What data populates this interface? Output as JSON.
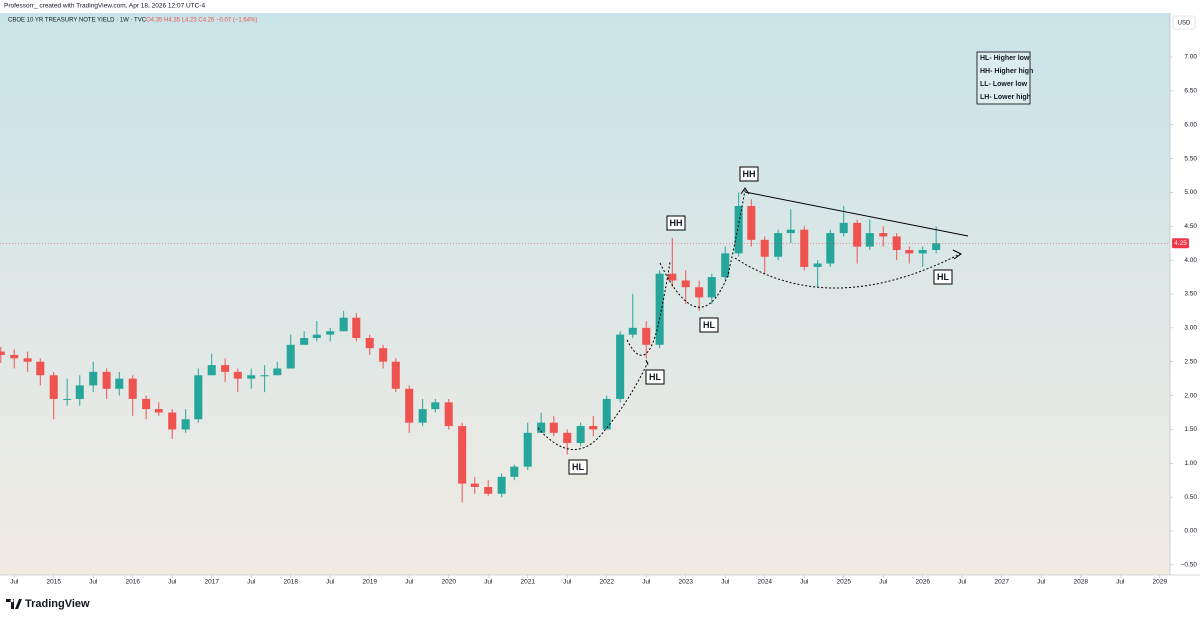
{
  "header": {
    "credit": "Professorr_ created with TradingView.com, Apr 18, 2026 12:07 UTC-4",
    "symbol": "CBOE 10 YR TREASURY NOTE YIELD · 1W · TVC",
    "ohlc": "O4.35 H4.35 L4.23 C4.25 −0.07 (−1.64%)",
    "currency": "USD"
  },
  "footer": {
    "brand": "TradingView"
  },
  "chart_data": {
    "type": "candlestick",
    "x": [
      2014.33,
      2014.5,
      2014.67,
      2014.83,
      2015,
      2015.17,
      2015.33,
      2015.5,
      2015.67,
      2015.83,
      2016,
      2016.17,
      2016.33,
      2016.5,
      2016.67,
      2016.83,
      2017,
      2017.17,
      2017.33,
      2017.5,
      2017.67,
      2017.83,
      2018,
      2018.17,
      2018.33,
      2018.5,
      2018.67,
      2018.83,
      2019,
      2019.17,
      2019.33,
      2019.5,
      2019.67,
      2019.83,
      2020,
      2020.17,
      2020.33,
      2020.5,
      2020.67,
      2020.83,
      2021,
      2021.17,
      2021.33,
      2021.5,
      2021.67,
      2021.83,
      2022,
      2022.17,
      2022.33,
      2022.5,
      2022.67,
      2022.83,
      2023,
      2023.17,
      2023.33,
      2023.5,
      2023.67,
      2023.83,
      2024,
      2024.17,
      2024.33,
      2024.5,
      2024.67,
      2024.83,
      2025,
      2025.17,
      2025.33,
      2025.5,
      2025.67,
      2025.83,
      2026,
      2026.17
    ],
    "open": [
      2.65,
      2.6,
      2.55,
      2.5,
      2.3,
      1.95,
      1.95,
      2.15,
      2.35,
      2.1,
      2.25,
      1.95,
      1.8,
      1.75,
      1.5,
      1.65,
      2.3,
      2.45,
      2.35,
      2.25,
      2.3,
      2.3,
      2.4,
      2.75,
      2.85,
      2.9,
      2.95,
      3.15,
      2.85,
      2.7,
      2.5,
      2.1,
      1.6,
      1.8,
      1.9,
      1.55,
      0.7,
      0.65,
      0.55,
      0.8,
      0.95,
      1.45,
      1.6,
      1.45,
      1.3,
      1.55,
      1.5,
      1.95,
      2.9,
      3.0,
      2.75,
      3.8,
      3.7,
      3.6,
      3.45,
      3.75,
      4.1,
      4.8,
      4.3,
      4.05,
      4.4,
      4.45,
      3.9,
      3.95,
      4.4,
      4.55,
      4.2,
      4.4,
      4.35,
      4.15,
      4.1,
      4.15
    ],
    "high": [
      2.72,
      2.68,
      2.65,
      2.55,
      2.35,
      2.25,
      2.3,
      2.5,
      2.4,
      2.35,
      2.3,
      2.0,
      1.9,
      1.8,
      1.8,
      2.4,
      2.62,
      2.55,
      2.4,
      2.4,
      2.45,
      2.5,
      2.9,
      2.95,
      3.1,
      3.0,
      3.25,
      3.22,
      2.9,
      2.75,
      2.55,
      2.15,
      1.95,
      1.95,
      1.95,
      1.6,
      0.8,
      0.75,
      0.85,
      0.98,
      1.6,
      1.75,
      1.7,
      1.5,
      1.6,
      1.7,
      2.0,
      2.95,
      3.5,
      3.1,
      3.85,
      4.33,
      3.85,
      3.7,
      3.8,
      4.2,
      5.0,
      4.9,
      4.35,
      4.45,
      4.75,
      4.5,
      4.0,
      4.45,
      4.8,
      4.6,
      4.6,
      4.5,
      4.4,
      4.2,
      4.2,
      4.5
    ],
    "low": [
      2.48,
      2.4,
      2.35,
      2.15,
      1.65,
      1.85,
      1.85,
      2.05,
      1.95,
      2.0,
      1.7,
      1.65,
      1.7,
      1.36,
      1.45,
      1.6,
      2.3,
      2.2,
      2.05,
      2.1,
      2.05,
      2.3,
      2.4,
      2.75,
      2.8,
      2.8,
      2.95,
      2.8,
      2.6,
      2.4,
      2.05,
      1.45,
      1.55,
      1.75,
      1.5,
      0.42,
      0.55,
      0.52,
      0.5,
      0.75,
      0.9,
      1.45,
      1.4,
      1.13,
      1.25,
      1.4,
      1.5,
      1.9,
      2.85,
      2.55,
      2.7,
      3.6,
      3.35,
      3.25,
      3.35,
      3.7,
      4.05,
      4.2,
      3.8,
      4.0,
      4.25,
      3.85,
      3.6,
      3.9,
      4.35,
      3.95,
      4.15,
      4.2,
      4.0,
      3.95,
      3.9,
      4.1
    ],
    "close": [
      2.6,
      2.55,
      2.5,
      2.3,
      1.95,
      1.95,
      2.15,
      2.35,
      2.1,
      2.25,
      1.95,
      1.8,
      1.75,
      1.5,
      1.65,
      2.3,
      2.45,
      2.35,
      2.25,
      2.3,
      2.3,
      2.4,
      2.75,
      2.85,
      2.9,
      2.95,
      3.15,
      2.85,
      2.7,
      2.5,
      2.1,
      1.6,
      1.8,
      1.9,
      1.55,
      0.7,
      0.65,
      0.55,
      0.8,
      0.95,
      1.45,
      1.6,
      1.45,
      1.3,
      1.55,
      1.5,
      1.95,
      2.9,
      3.0,
      2.75,
      3.8,
      3.7,
      3.6,
      3.45,
      3.75,
      4.1,
      4.8,
      4.3,
      4.05,
      4.4,
      4.45,
      3.9,
      3.95,
      4.4,
      4.55,
      4.2,
      4.4,
      4.35,
      4.15,
      4.1,
      4.15,
      4.25
    ],
    "up_color": "#26a69a",
    "down_color": "#ef5350",
    "last_price": 4.25,
    "last_price_color": "#f23645",
    "xlim": [
      2014.32,
      2029.13
    ],
    "xticks": [
      {
        "value": 2014.5,
        "label": "Jul"
      },
      2015,
      {
        "value": 2015.5,
        "label": "Jul"
      },
      2016,
      {
        "value": 2016.5,
        "label": "Jul"
      },
      2017,
      {
        "value": 2017.5,
        "label": "Jul"
      },
      2018,
      {
        "value": 2018.5,
        "label": "Jul"
      },
      2019,
      {
        "value": 2019.5,
        "label": "Jul"
      },
      2020,
      {
        "value": 2020.5,
        "label": "Jul"
      },
      2021,
      {
        "value": 2021.5,
        "label": "Jul"
      },
      2022,
      {
        "value": 2022.5,
        "label": "Jul"
      },
      2023,
      {
        "value": 2023.5,
        "label": "Jul"
      },
      2024,
      {
        "value": 2024.5,
        "label": "Jul"
      },
      2025,
      {
        "value": 2025.5,
        "label": "Jul"
      },
      2026,
      {
        "value": 2026.5,
        "label": "Jul"
      },
      2027,
      {
        "value": 2027.5,
        "label": "Jul"
      },
      2028,
      {
        "value": 2028.5,
        "label": "Jul"
      },
      2029
    ],
    "ylim": [
      -0.65,
      7.65
    ],
    "yticks": [
      {
        "value": -0.5,
        "label": "−0.50"
      },
      {
        "value": 0,
        "label": "0.00"
      },
      {
        "value": 0.5,
        "label": "0.50"
      },
      {
        "value": 1,
        "label": "1.00"
      },
      {
        "value": 1.5,
        "label": "1.50"
      },
      {
        "value": 2,
        "label": "2.00"
      },
      {
        "value": 2.5,
        "label": "2.50"
      },
      {
        "value": 3,
        "label": "3.00"
      },
      {
        "value": 3.5,
        "label": "3.50"
      },
      {
        "value": 4,
        "label": "4.00"
      },
      {
        "value": 4.5,
        "label": "4.50"
      },
      {
        "value": 5,
        "label": "5.00"
      },
      {
        "value": 5.5,
        "label": "5.50"
      },
      {
        "value": 6,
        "label": "6.00"
      },
      {
        "value": 6.5,
        "label": "6.50"
      },
      {
        "value": 7,
        "label": "7.00"
      }
    ],
    "grid": false,
    "annotations": [
      "HH",
      "HH",
      "HL",
      "HL",
      "HL",
      "HL"
    ],
    "legend_box": [
      "HL- Higher low",
      "HH- Higher high",
      "LL- Lower low",
      "LH- Lower high"
    ]
  }
}
